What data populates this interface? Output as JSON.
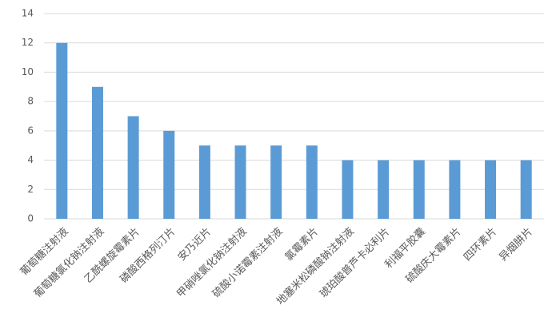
{
  "chart_data": {
    "type": "bar",
    "categories": [
      "葡萄糖注射液",
      "葡萄糖氯化钠注射液",
      "乙酰螺旋霉素片",
      "磷酸西格列汀片",
      "安乃近片",
      "甲硝唑氯化钠注射液",
      "硫酸小诺霉素注射液",
      "氯霉素片",
      "地塞米松磷酸钠注射液",
      "琥珀酸普芦卡必利片",
      "利福平胶囊",
      "硫酸庆大霉素片",
      "四环素片",
      "异烟肼片"
    ],
    "values": [
      12,
      9,
      7,
      6,
      5,
      5,
      5,
      5,
      4,
      4,
      4,
      4,
      4,
      4
    ],
    "color": "#5b9bd5",
    "ylim": [
      0,
      14
    ],
    "yticks": [
      0,
      2,
      4,
      6,
      8,
      10,
      12,
      14
    ],
    "grid": true
  }
}
